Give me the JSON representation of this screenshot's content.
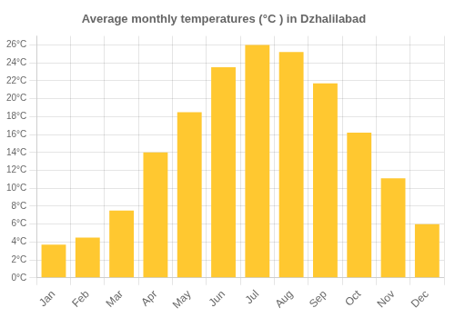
{
  "chart_data": {
    "type": "bar",
    "title": "Average monthly temperatures (°C ) in Dzhalilabad",
    "categories": [
      "Jan",
      "Feb",
      "Mar",
      "Apr",
      "May",
      "Jun",
      "Jul",
      "Aug",
      "Sep",
      "Oct",
      "Nov",
      "Dec"
    ],
    "values": [
      3.7,
      4.5,
      7.5,
      14.0,
      18.5,
      23.5,
      26.0,
      25.2,
      21.7,
      16.2,
      11.1,
      6.0
    ],
    "color": "#FFC830",
    "ylim": [
      0,
      27
    ],
    "yticks": [
      {
        "value": 0,
        "label": "0°C"
      },
      {
        "value": 2,
        "label": "2°C"
      },
      {
        "value": 4,
        "label": "4°C"
      },
      {
        "value": 6,
        "label": "6°C"
      },
      {
        "value": 8,
        "label": "8°C"
      },
      {
        "value": 10,
        "label": "10°C"
      },
      {
        "value": 12,
        "label": "12°C"
      },
      {
        "value": 14,
        "label": "14°C"
      },
      {
        "value": 16,
        "label": "16°C"
      },
      {
        "value": 18,
        "label": "18°C"
      },
      {
        "value": 20,
        "label": "20°C"
      },
      {
        "value": 22,
        "label": "22°C"
      },
      {
        "value": 24,
        "label": "24°C"
      },
      {
        "value": 26,
        "label": "26°C"
      }
    ],
    "grid": true
  }
}
